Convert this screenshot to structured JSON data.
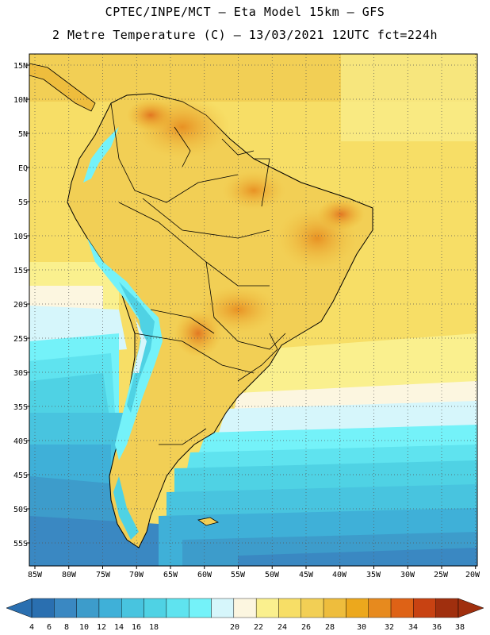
{
  "header": {
    "line1": "CPTEC/INPE/MCT –  Eta Model 15km – GFS",
    "line2": "2 Metre Temperature (C) – 13/03/2021 12UTC fct=224h"
  },
  "map": {
    "lat_labels": [
      "15N",
      "10N",
      "5N",
      "EQ",
      "5S",
      "10S",
      "15S",
      "20S",
      "25S",
      "30S",
      "35S",
      "40S",
      "45S",
      "50S",
      "55S"
    ],
    "lon_labels": [
      "85W",
      "80W",
      "75W",
      "70W",
      "65W",
      "60W",
      "55W",
      "50W",
      "45W",
      "40W",
      "35W",
      "30W",
      "25W",
      "20W"
    ]
  },
  "colorbar": {
    "ticks": [
      "4",
      "6",
      "8",
      "10",
      "12",
      "14",
      "16",
      "18",
      "20",
      "22",
      "24",
      "26",
      "28",
      "30",
      "32",
      "34",
      "36",
      "38"
    ],
    "colors": [
      "#2a6fb0",
      "#3a88c2",
      "#3d9ccb",
      "#3fb0d8",
      "#48c4df",
      "#4fd2e4",
      "#5fe3ef",
      "#74f2f9",
      "#d6f6fb",
      "#fcf6e0",
      "#faf08e",
      "#f7de66",
      "#f2cf55",
      "#eebd3d",
      "#eca81d",
      "#e78a1e",
      "#de6216",
      "#c84212",
      "#a02f0e"
    ],
    "low_color": "#2a6fb0",
    "high_color": "#a02f0e"
  }
}
